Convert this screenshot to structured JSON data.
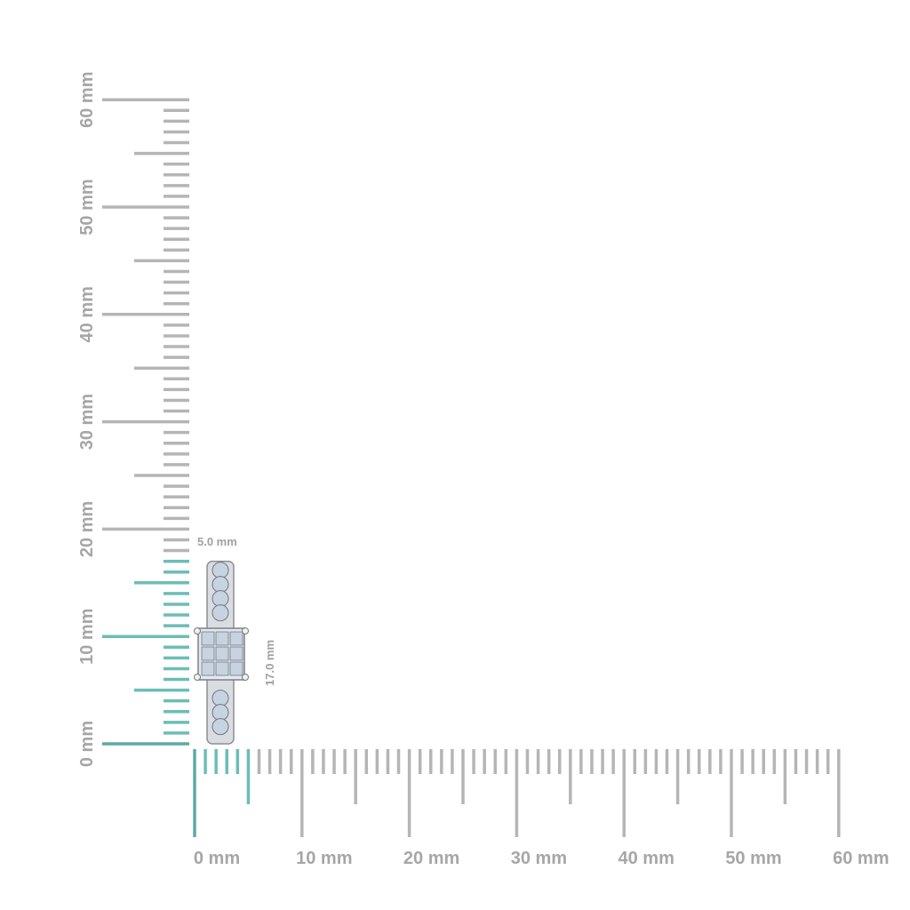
{
  "unit": "mm",
  "ruler": {
    "max_mm": 60,
    "label_step_mm": 10,
    "x_labels": [
      "0 mm",
      "10 mm",
      "20 mm",
      "30 mm",
      "40 mm",
      "50 mm",
      "60 mm"
    ],
    "y_labels": [
      "0 mm",
      "10 mm",
      "20 mm",
      "30 mm",
      "40 mm",
      "50 mm",
      "60 mm"
    ]
  },
  "item": {
    "width_mm": 5.0,
    "height_mm": 17.0,
    "width_label": "5.0 mm",
    "height_label": "17.0 mm"
  },
  "colors": {
    "tick": "#b5b5b5",
    "highlight": "#6cbdb6",
    "zero": "#5ea9a3",
    "label": "#a6a6a6",
    "metal": "#d9dde2",
    "stone": "#c7d3e0"
  }
}
